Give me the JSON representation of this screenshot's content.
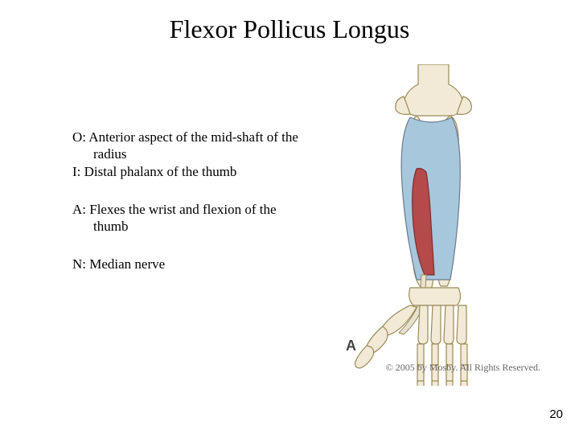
{
  "title": "Flexor Pollicus Longus",
  "origin": "O:  Anterior aspect of the mid-shaft of the radius",
  "insertion": "I:  Distal phalanx of the thumb",
  "action": "A:  Flexes the wrist and flexion of the thumb",
  "nerve": "N:  Median nerve",
  "panel_label": "A",
  "copyright": "© 2005 by Mosby. All Rights Reserved.",
  "page_number": "20",
  "illustration": {
    "type": "anatomical-diagram",
    "region": "anterior-forearm-hand",
    "bone_fill": "#f2ead7",
    "bone_stroke": "#9a8a57",
    "muscle_surface_fill": "#a7c7dd",
    "muscle_deep_fill": "#b44a4a",
    "muscle_stroke": "#6b7a88",
    "background": "#ffffff",
    "stroke_width": 1.2
  }
}
